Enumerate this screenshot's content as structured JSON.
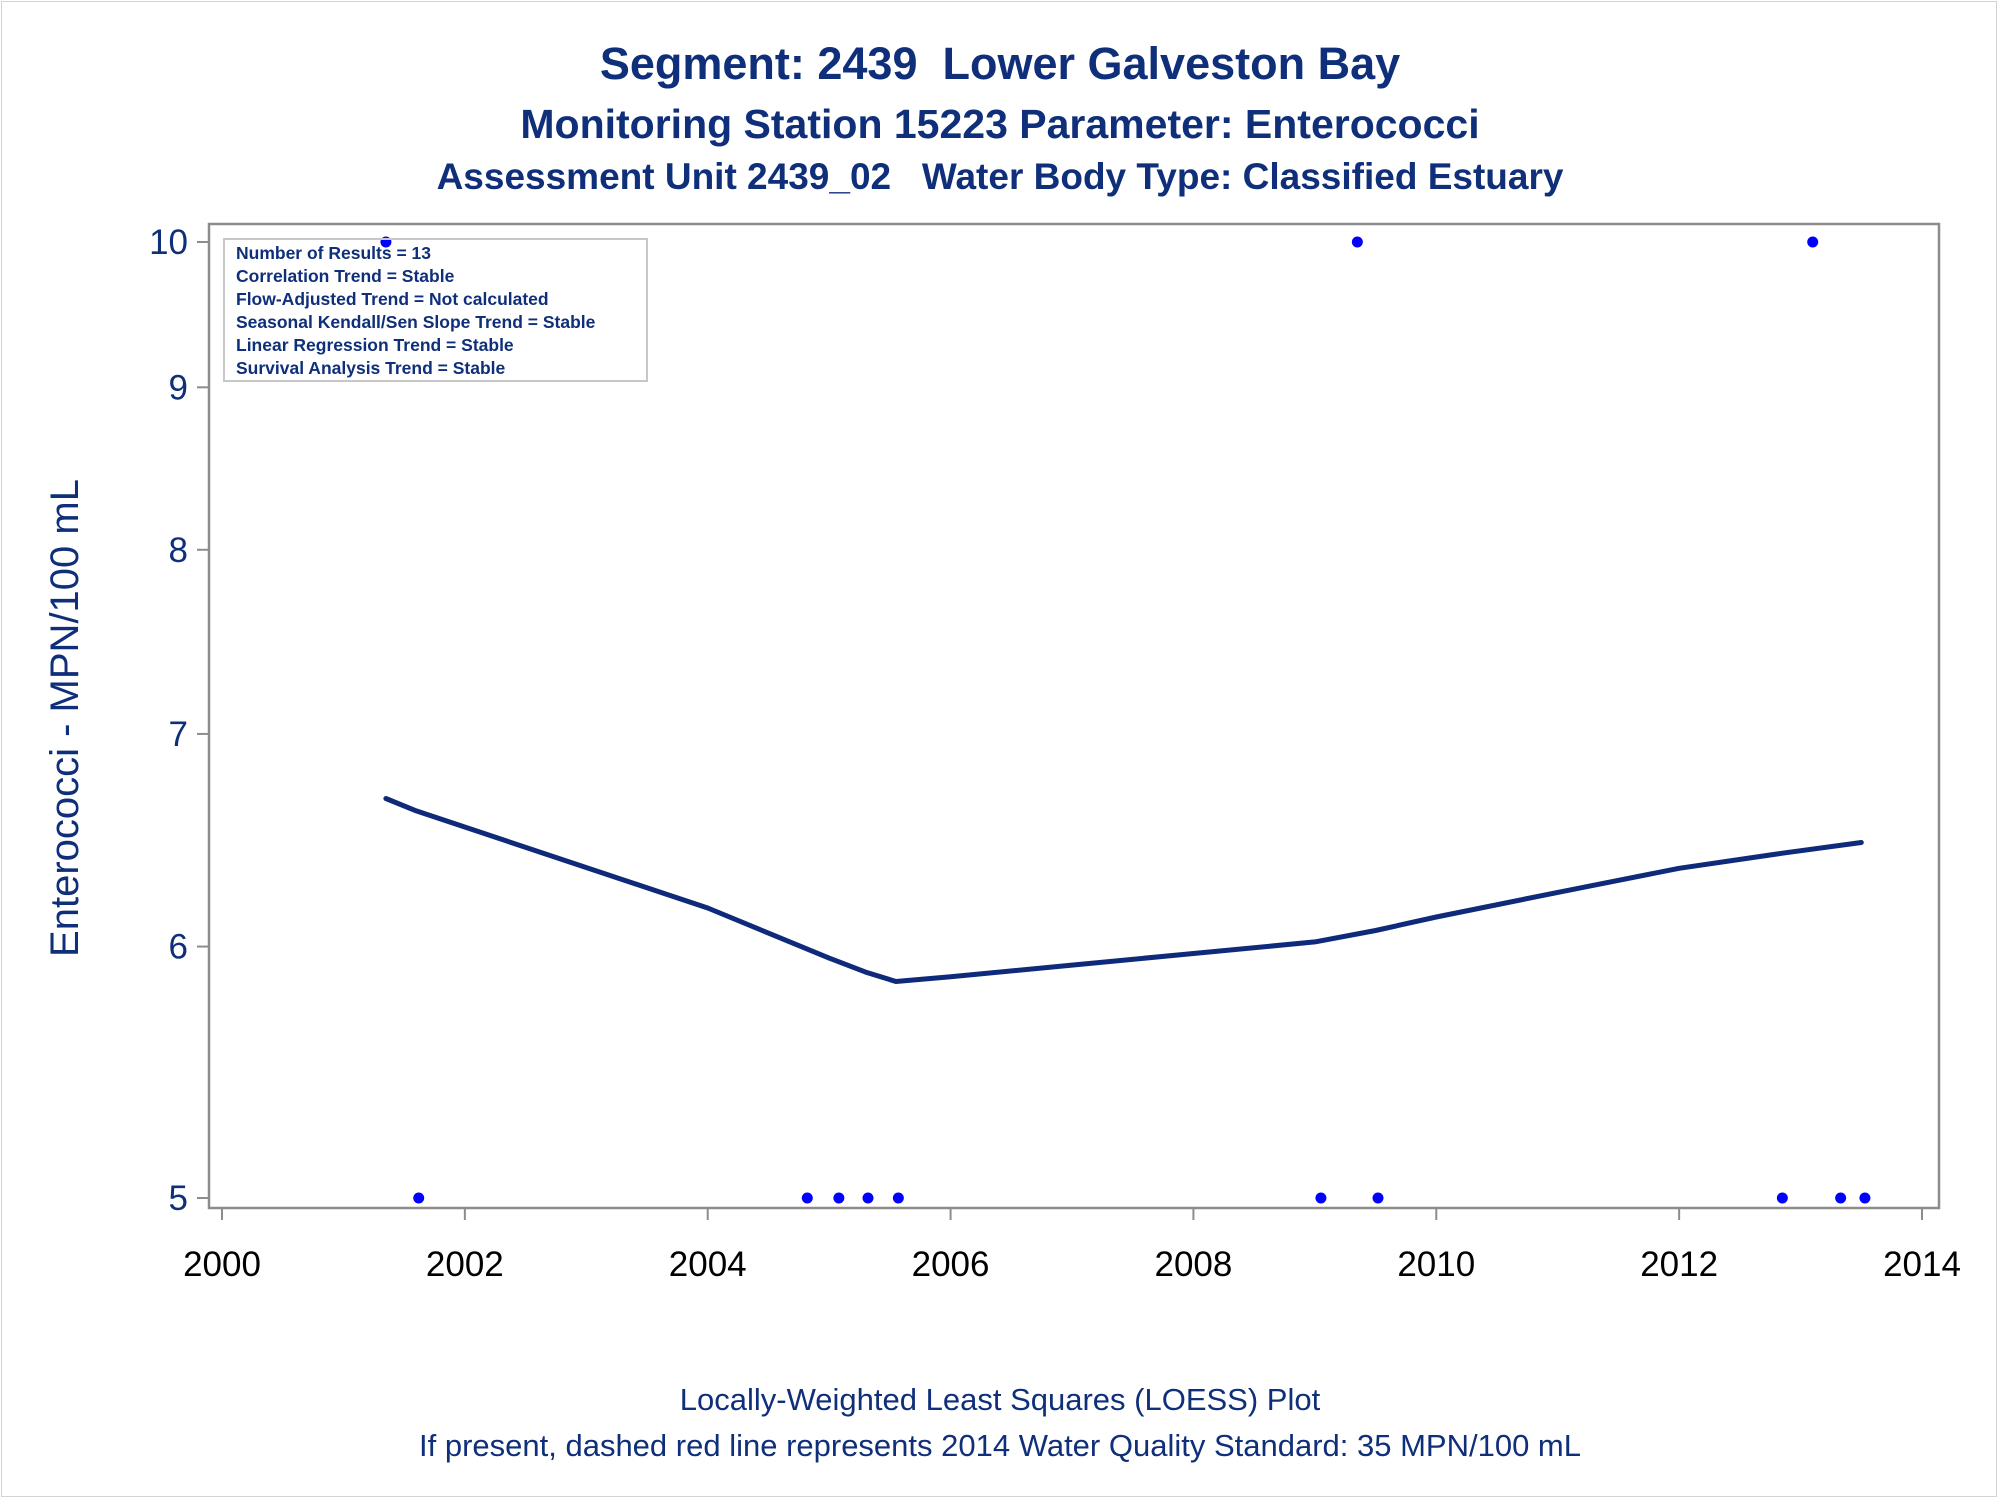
{
  "title": "Segment: 2439  Lower Galveston Bay",
  "subtitle": "Monitoring Station 15223 Parameter: Enterococci",
  "subtitle2": "Assessment Unit 2439_02   Water Body Type: Classified Estuary",
  "footnote1": "Locally-Weighted Least Squares (LOESS) Plot",
  "footnote2": "If present, dashed red line represents 2014 Water Quality Standard: 35 MPN/100 mL",
  "colors": {
    "text": "#0f2f7a",
    "points": "#0000ff",
    "line": "#0f2a7a",
    "axis": "#8c8c8c"
  },
  "stats_box": [
    "Number of Results = 13",
    "Correlation Trend = Stable",
    "Flow-Adjusted Trend = Not calculated",
    "Seasonal Kendall/Sen Slope Trend = Stable",
    "Linear Regression Trend = Stable",
    "Survival Analysis Trend = Stable"
  ],
  "chart_data": {
    "type": "scatter",
    "title": "Segment: 2439  Lower Galveston Bay",
    "xlabel": "",
    "ylabel": "Enterococci - MPN/100 mL",
    "y_scale": "log",
    "xlim": [
      2000,
      2014
    ],
    "ylim": [
      5,
      10
    ],
    "x_ticks": [
      "2000",
      "2002",
      "2004",
      "2006",
      "2008",
      "2010",
      "2012",
      "2014"
    ],
    "y_ticks": [
      "5",
      "6",
      "7",
      "8",
      "9",
      "10"
    ],
    "grid": false,
    "series": [
      {
        "kind": "points",
        "x": [
          2001.35,
          2001.62,
          2004.82,
          2005.08,
          2005.32,
          2005.57,
          2009.05,
          2009.35,
          2009.52,
          2012.85,
          2013.1,
          2013.33,
          2013.53
        ],
        "y": [
          10,
          5,
          5,
          5,
          5,
          5,
          5,
          10,
          5,
          5,
          10,
          5,
          5
        ]
      },
      {
        "kind": "loess",
        "x": [
          2001.35,
          2001.6,
          2004.0,
          2005.0,
          2005.3,
          2005.55,
          2006.0,
          2007.0,
          2008.0,
          2009.0,
          2009.5,
          2010.0,
          2011.0,
          2012.0,
          2012.85,
          2013.5
        ],
        "y": [
          6.68,
          6.62,
          6.17,
          5.95,
          5.89,
          5.85,
          5.87,
          5.92,
          5.97,
          6.02,
          6.07,
          6.13,
          6.24,
          6.35,
          6.42,
          6.47
        ]
      }
    ]
  }
}
